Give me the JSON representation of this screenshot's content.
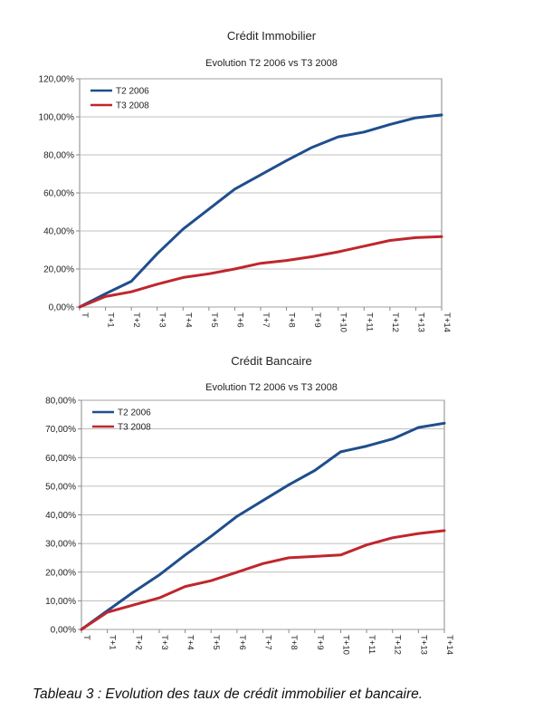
{
  "chart_data": [
    {
      "type": "line",
      "title": "Crédit Immobilier",
      "subtitle": "Evolution T2 2006 vs T3 2008",
      "categories": [
        "T",
        "T+1",
        "T+2",
        "T+3",
        "T+4",
        "T+5",
        "T+6",
        "T+7",
        "T+8",
        "T+9",
        "T+10",
        "T+11",
        "T+12",
        "T+13",
        "T+14"
      ],
      "y_ticks": [
        "0,00%",
        "20,00%",
        "40,00%",
        "60,00%",
        "80,00%",
        "100,00%",
        "120,00%"
      ],
      "ylim": [
        0,
        120
      ],
      "legend_position": "top-left",
      "grid": true,
      "series": [
        {
          "name": "T2 2006",
          "color": "#1f4e8c",
          "values": [
            0,
            7,
            13.5,
            28,
            41,
            51.5,
            62,
            69.5,
            77,
            84,
            89.5,
            92,
            96,
            99.5,
            101
          ]
        },
        {
          "name": "T3 2008",
          "color": "#c0262d",
          "values": [
            0,
            5.5,
            8,
            12,
            15.5,
            17.5,
            20,
            23,
            24.5,
            26.5,
            29,
            32,
            35,
            36.5,
            37
          ]
        }
      ]
    },
    {
      "type": "line",
      "title": "Crédit Bancaire",
      "subtitle": "Evolution T2 2006 vs T3 2008",
      "categories": [
        "T",
        "T+1",
        "T+2",
        "T+3",
        "T+4",
        "T+5",
        "T+6",
        "T+7",
        "T+8",
        "T+9",
        "T+10",
        "T+11",
        "T+12",
        "T+13",
        "T+14"
      ],
      "y_ticks": [
        "0,00%",
        "10,00%",
        "20,00%",
        "30,00%",
        "40,00%",
        "50,00%",
        "60,00%",
        "70,00%",
        "80,00%"
      ],
      "ylim": [
        0,
        80
      ],
      "legend_position": "top-left",
      "grid": true,
      "series": [
        {
          "name": "T2 2006",
          "color": "#1f4e8c",
          "values": [
            0,
            6.5,
            13,
            19,
            26,
            32.5,
            39.5,
            45,
            50.5,
            55.5,
            62,
            64,
            66.5,
            70.5,
            72
          ]
        },
        {
          "name": "T3 2008",
          "color": "#c0262d",
          "values": [
            0,
            6,
            8.5,
            11,
            15,
            17,
            20,
            23,
            25,
            25.5,
            26,
            29.5,
            32,
            33.5,
            34.5
          ]
        }
      ]
    }
  ],
  "caption": "Tableau 3 : Evolution des taux de crédit immobilier et bancaire."
}
